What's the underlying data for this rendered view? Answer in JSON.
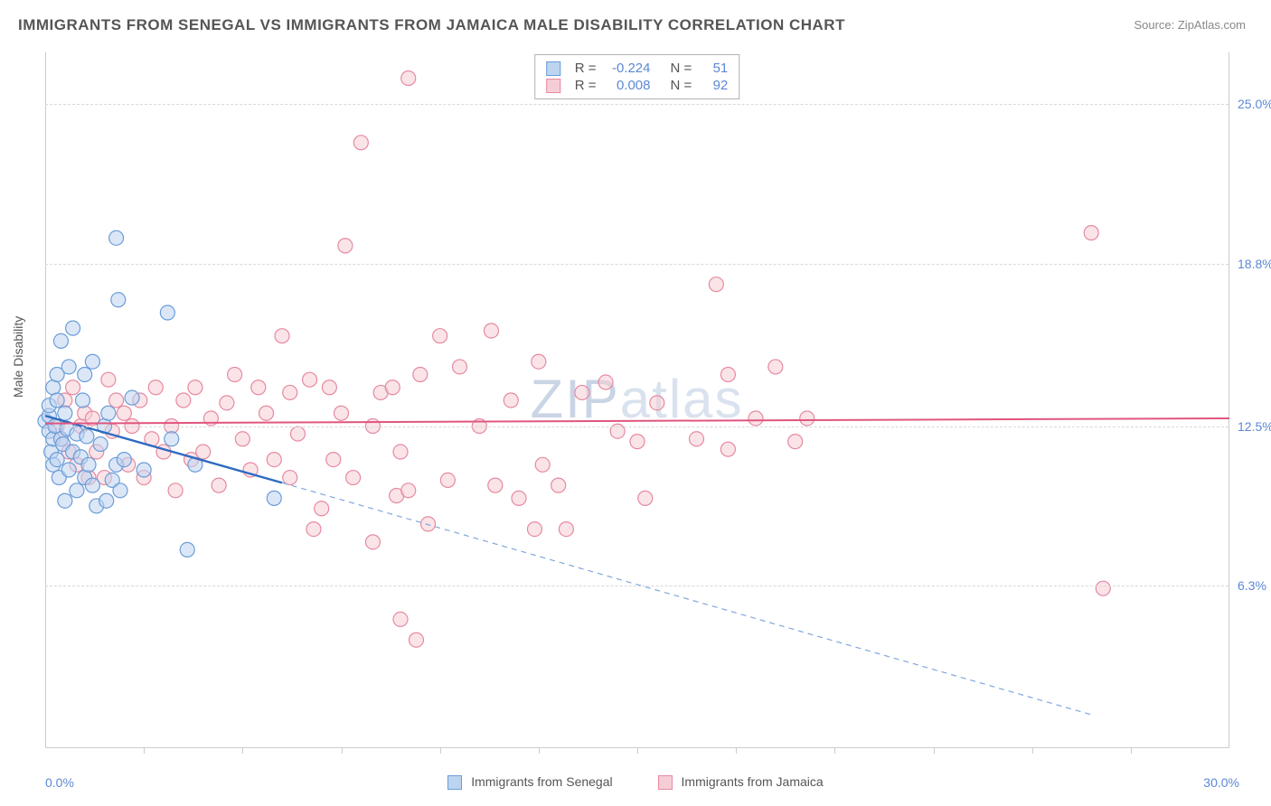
{
  "title": "IMMIGRANTS FROM SENEGAL VS IMMIGRANTS FROM JAMAICA MALE DISABILITY CORRELATION CHART",
  "source_label": "Source: ZipAtlas.com",
  "y_axis_title": "Male Disability",
  "watermark_a": "ZIP",
  "watermark_b": "atlas",
  "chart": {
    "type": "scatter",
    "background_color": "#ffffff",
    "grid_color": "#d8d8d8",
    "axis_color": "#cccccc",
    "tick_label_color": "#5b88d6",
    "text_color": "#555555",
    "xlim": [
      0.0,
      30.0
    ],
    "ylim": [
      0.0,
      27.0
    ],
    "y_ticks": [
      6.3,
      12.5,
      18.8,
      25.0
    ],
    "y_tick_labels": [
      "6.3%",
      "12.5%",
      "18.8%",
      "25.0%"
    ],
    "x_min_label": "0.0%",
    "x_max_label": "30.0%",
    "x_tick_positions": [
      2.5,
      5.0,
      7.5,
      10.0,
      12.5,
      15.0,
      17.5,
      20.0,
      22.5,
      25.0,
      27.5
    ],
    "marker_radius": 8,
    "marker_stroke_width": 1.2,
    "series": [
      {
        "name": "Immigrants from Senegal",
        "fill_color": "#bdd4f0",
        "stroke_color": "#6a9cd8",
        "fill_opacity": 0.55,
        "r_value": "-0.224",
        "n_value": "51",
        "trend": {
          "solid": {
            "x1": 0.0,
            "y1": 12.9,
            "x2": 6.0,
            "y2": 10.3,
            "color": "#2e6bc0",
            "width": 2.4
          },
          "dashed": {
            "x1": 6.0,
            "y1": 10.3,
            "x2": 26.5,
            "y2": 1.3,
            "color": "#7fa8da",
            "width": 1.2,
            "dash": "6,5"
          }
        },
        "points": [
          [
            0.0,
            12.7
          ],
          [
            0.1,
            12.9
          ],
          [
            0.1,
            12.3
          ],
          [
            0.1,
            13.3
          ],
          [
            0.15,
            11.5
          ],
          [
            0.2,
            12.0
          ],
          [
            0.2,
            14.0
          ],
          [
            0.2,
            11.0
          ],
          [
            0.25,
            12.5
          ],
          [
            0.3,
            13.5
          ],
          [
            0.3,
            11.2
          ],
          [
            0.3,
            14.5
          ],
          [
            0.35,
            10.5
          ],
          [
            0.4,
            12.0
          ],
          [
            0.4,
            15.8
          ],
          [
            0.45,
            11.8
          ],
          [
            0.5,
            13.0
          ],
          [
            0.5,
            9.6
          ],
          [
            0.55,
            12.4
          ],
          [
            0.6,
            10.8
          ],
          [
            0.6,
            14.8
          ],
          [
            0.7,
            11.5
          ],
          [
            0.7,
            16.3
          ],
          [
            0.8,
            12.2
          ],
          [
            0.8,
            10.0
          ],
          [
            0.9,
            11.3
          ],
          [
            0.95,
            13.5
          ],
          [
            1.0,
            14.5
          ],
          [
            1.0,
            10.5
          ],
          [
            1.05,
            12.1
          ],
          [
            1.1,
            11.0
          ],
          [
            1.2,
            15.0
          ],
          [
            1.2,
            10.2
          ],
          [
            1.3,
            9.4
          ],
          [
            1.4,
            11.8
          ],
          [
            1.5,
            12.5
          ],
          [
            1.55,
            9.6
          ],
          [
            1.6,
            13.0
          ],
          [
            1.7,
            10.4
          ],
          [
            1.8,
            19.8
          ],
          [
            1.8,
            11.0
          ],
          [
            1.85,
            17.4
          ],
          [
            1.9,
            10.0
          ],
          [
            2.0,
            11.2
          ],
          [
            2.2,
            13.6
          ],
          [
            2.5,
            10.8
          ],
          [
            3.1,
            16.9
          ],
          [
            3.2,
            12.0
          ],
          [
            3.6,
            7.7
          ],
          [
            3.8,
            11.0
          ],
          [
            5.8,
            9.7
          ]
        ]
      },
      {
        "name": "Immigrants from Jamaica",
        "fill_color": "#f6cdd6",
        "stroke_color": "#e68aa0",
        "fill_opacity": 0.55,
        "r_value": "0.008",
        "n_value": "92",
        "trend": {
          "solid": {
            "x1": 0.0,
            "y1": 12.6,
            "x2": 30.0,
            "y2": 12.8,
            "color": "#e0567e",
            "width": 2.0
          }
        },
        "points": [
          [
            0.3,
            12.5
          ],
          [
            0.4,
            12.0
          ],
          [
            0.5,
            13.5
          ],
          [
            0.6,
            11.5
          ],
          [
            0.7,
            14.0
          ],
          [
            0.8,
            11.0
          ],
          [
            0.9,
            12.5
          ],
          [
            1.0,
            13.0
          ],
          [
            1.1,
            10.5
          ],
          [
            1.2,
            12.8
          ],
          [
            1.3,
            11.5
          ],
          [
            1.5,
            10.5
          ],
          [
            1.6,
            14.3
          ],
          [
            1.7,
            12.3
          ],
          [
            1.8,
            13.5
          ],
          [
            2.0,
            13.0
          ],
          [
            2.1,
            11.0
          ],
          [
            2.2,
            12.5
          ],
          [
            2.4,
            13.5
          ],
          [
            2.5,
            10.5
          ],
          [
            2.7,
            12.0
          ],
          [
            2.8,
            14.0
          ],
          [
            3.0,
            11.5
          ],
          [
            3.2,
            12.5
          ],
          [
            3.3,
            10.0
          ],
          [
            3.5,
            13.5
          ],
          [
            3.7,
            11.2
          ],
          [
            3.8,
            14.0
          ],
          [
            4.0,
            11.5
          ],
          [
            4.2,
            12.8
          ],
          [
            4.4,
            10.2
          ],
          [
            4.6,
            13.4
          ],
          [
            4.8,
            14.5
          ],
          [
            5.0,
            12.0
          ],
          [
            5.2,
            10.8
          ],
          [
            5.4,
            14.0
          ],
          [
            5.6,
            13.0
          ],
          [
            5.8,
            11.2
          ],
          [
            6.0,
            16.0
          ],
          [
            6.2,
            13.8
          ],
          [
            6.2,
            10.5
          ],
          [
            6.4,
            12.2
          ],
          [
            6.7,
            14.3
          ],
          [
            6.8,
            8.5
          ],
          [
            7.0,
            9.3
          ],
          [
            7.2,
            14.0
          ],
          [
            7.3,
            11.2
          ],
          [
            7.5,
            13.0
          ],
          [
            7.6,
            19.5
          ],
          [
            7.8,
            10.5
          ],
          [
            8.0,
            23.5
          ],
          [
            8.3,
            12.5
          ],
          [
            8.3,
            8.0
          ],
          [
            8.5,
            13.8
          ],
          [
            8.8,
            14.0
          ],
          [
            8.9,
            9.8
          ],
          [
            9.0,
            11.5
          ],
          [
            9.0,
            5.0
          ],
          [
            9.2,
            26.0
          ],
          [
            9.2,
            10.0
          ],
          [
            9.4,
            4.2
          ],
          [
            9.5,
            14.5
          ],
          [
            9.7,
            8.7
          ],
          [
            10.0,
            16.0
          ],
          [
            10.2,
            10.4
          ],
          [
            10.5,
            14.8
          ],
          [
            11.0,
            12.5
          ],
          [
            11.3,
            16.2
          ],
          [
            11.4,
            10.2
          ],
          [
            11.8,
            13.5
          ],
          [
            12.0,
            9.7
          ],
          [
            12.4,
            8.5
          ],
          [
            12.5,
            15.0
          ],
          [
            12.6,
            11.0
          ],
          [
            13.0,
            10.2
          ],
          [
            13.2,
            8.5
          ],
          [
            13.6,
            13.8
          ],
          [
            14.2,
            14.2
          ],
          [
            14.5,
            12.3
          ],
          [
            15.0,
            11.9
          ],
          [
            15.2,
            9.7
          ],
          [
            15.5,
            13.4
          ],
          [
            16.5,
            12.0
          ],
          [
            17.0,
            18.0
          ],
          [
            17.3,
            14.5
          ],
          [
            17.3,
            11.6
          ],
          [
            18.0,
            12.8
          ],
          [
            18.5,
            14.8
          ],
          [
            19.0,
            11.9
          ],
          [
            19.3,
            12.8
          ],
          [
            26.5,
            20.0
          ],
          [
            26.8,
            6.2
          ]
        ]
      }
    ]
  },
  "legend_items": [
    {
      "label": "Immigrants from Senegal",
      "fill": "#bdd4f0",
      "stroke": "#6a9cd8"
    },
    {
      "label": "Immigrants from Jamaica",
      "fill": "#f6cdd6",
      "stroke": "#e68aa0"
    }
  ]
}
